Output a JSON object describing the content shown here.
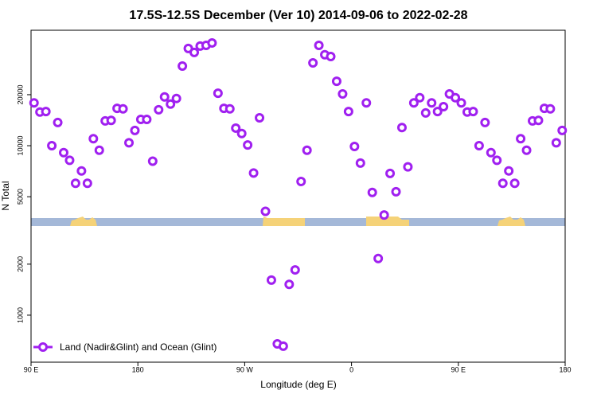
{
  "chart_data": {
    "type": "scatter",
    "title": "17.5S-12.5S December (Ver 10)   2014-09-06 to 2022-02-28",
    "xlabel": "Longitude (deg E)",
    "ylabel": "N Total",
    "log_y": true,
    "legend": "lower left",
    "xlim": [
      90,
      540
    ],
    "xticks": [
      {
        "value": 90,
        "label": "90 E"
      },
      180,
      {
        "value": 270,
        "label": "90 W"
      },
      {
        "value": 360,
        "label": "0"
      },
      {
        "value": 450,
        "label": "90 E"
      },
      {
        "value": 540,
        "label": "180"
      }
    ],
    "ylim": [
      528,
      48000
    ],
    "yticks": [
      1000,
      2000,
      5000,
      10000,
      20000
    ],
    "x": [
      92.5,
      97.5,
      102.5,
      107.5,
      112.5,
      117.5,
      122.5,
      127.5,
      132.5,
      137.5,
      142.5,
      147.5,
      152.5,
      157.5,
      162.5,
      167.5,
      172.5,
      177.5,
      182.5,
      187.5,
      192.5,
      197.5,
      202.5,
      207.5,
      212.5,
      217.5,
      222.5,
      227.5,
      232.5,
      237.5,
      242.5,
      247.5,
      252.5,
      257.5,
      262.5,
      267.5,
      272.5,
      277.5,
      282.5,
      287.5,
      292.5,
      297.5,
      302.5,
      307.5,
      312.5,
      317.5,
      322.5,
      327.5,
      332.5,
      337.5,
      342.5,
      347.5,
      352.5,
      357.5,
      362.5,
      367.5,
      372.5,
      377.5,
      382.5,
      387.5,
      392.5,
      397.5,
      402.5,
      407.5,
      412.5,
      417.5,
      422.5,
      427.5,
      432.5,
      437.5,
      442.5,
      447.5,
      452.5,
      457.5,
      462.5,
      467.5,
      472.5,
      477.5,
      482.5,
      487.5,
      492.5,
      497.5,
      502.5,
      507.5,
      512.5,
      517.5,
      522.5,
      527.5,
      532.5,
      537.5
    ],
    "series": [
      {
        "name": "Land (Nadir&Glint) and Ocean (Glint)",
        "color": "#a020f0",
        "values": [
          17900,
          15800,
          15900,
          10000,
          13700,
          9100,
          8200,
          6000,
          7100,
          6000,
          11000,
          9400,
          14000,
          14100,
          16600,
          16500,
          10400,
          12300,
          14300,
          14300,
          8100,
          16300,
          19400,
          17600,
          19000,
          29500,
          37500,
          35500,
          38700,
          39100,
          40400,
          20400,
          16600,
          16500,
          12700,
          11800,
          10100,
          6900,
          14600,
          4100,
          1610,
          677,
          656,
          1520,
          1850,
          6150,
          9400,
          30800,
          39100,
          34400,
          33600,
          24000,
          20200,
          15900,
          9900,
          7900,
          17900,
          5300,
          2160,
          3900,
          6860,
          5350,
          12800,
          7500,
          17900,
          19200,
          15600,
          17900,
          15900,
          17000,
          20200,
          19200,
          17900,
          15800,
          15900,
          10000,
          13700,
          9100,
          8200,
          6000,
          7100,
          6000,
          11000,
          9400,
          14000,
          14100,
          16600,
          16500,
          10400,
          12300
        ]
      }
    ]
  }
}
